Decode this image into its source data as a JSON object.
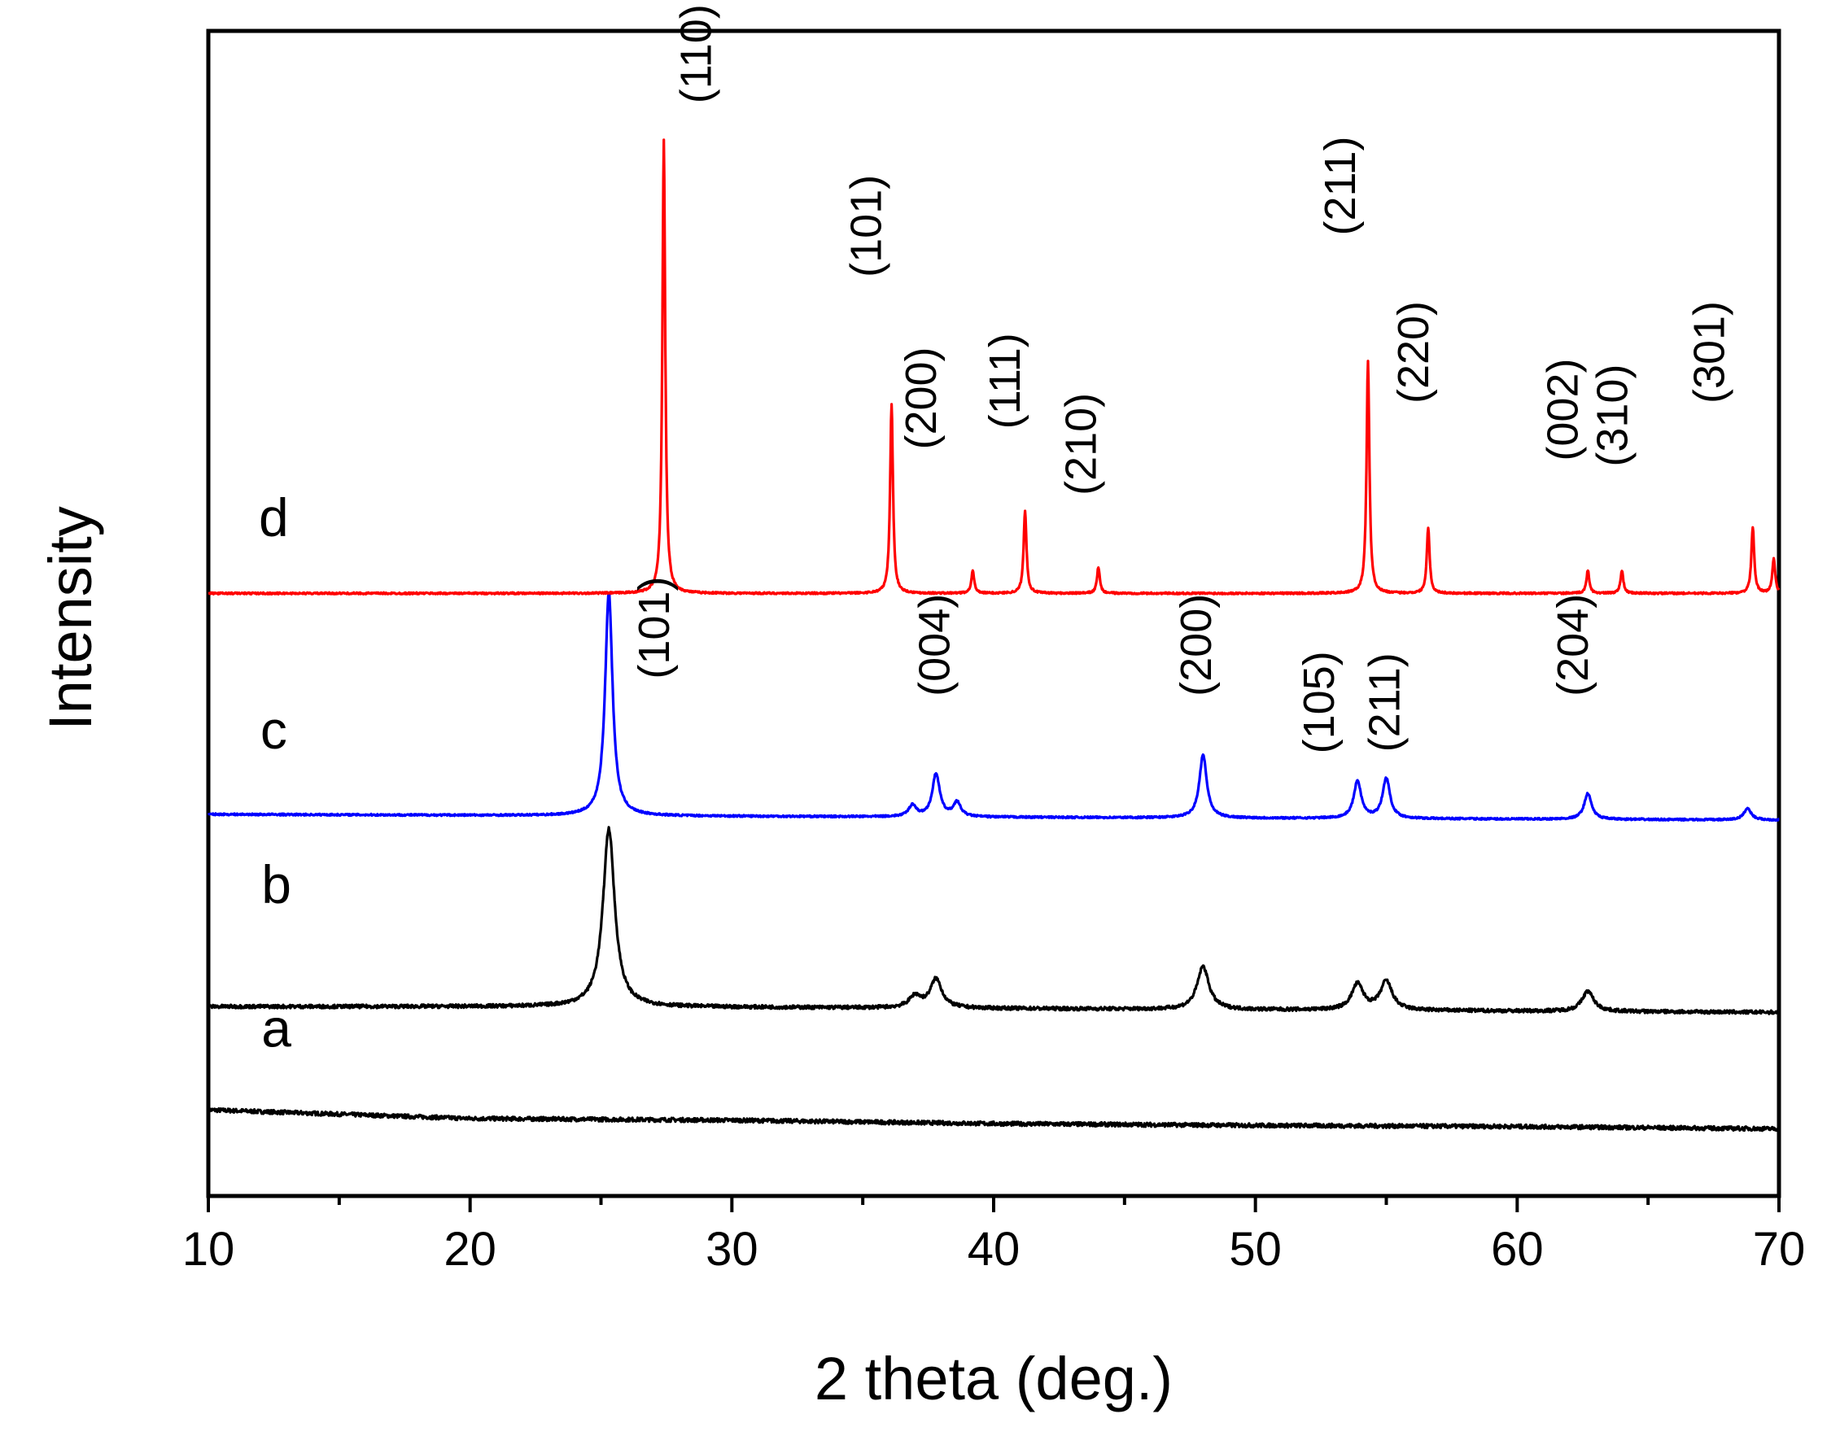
{
  "chart_data": {
    "type": "line",
    "title": "",
    "xlabel": "2 theta (deg.)",
    "ylabel": "Intensity",
    "xlim": [
      10,
      70
    ],
    "xticks": [
      10,
      20,
      30,
      40,
      50,
      60,
      70
    ],
    "grid": false,
    "legend": "none",
    "series": [
      {
        "name": "a",
        "color": "#000000",
        "points": [
          [
            10,
            0.03
          ],
          [
            20,
            0.015
          ],
          [
            30,
            0.012
          ],
          [
            40,
            0.006
          ],
          [
            50,
            0.003
          ],
          [
            60,
            0.001
          ],
          [
            70,
            -0.003
          ]
        ],
        "peaks": []
      },
      {
        "name": "b",
        "color": "#000000",
        "baseline": [
          [
            10,
            0.0
          ],
          [
            25,
            0.0
          ],
          [
            70,
            -0.01
          ]
        ],
        "peaks": [
          {
            "x": 25.3,
            "h": 0.31
          },
          {
            "x": 37.0,
            "h": 0.02
          },
          {
            "x": 37.8,
            "h": 0.05
          },
          {
            "x": 48.0,
            "h": 0.075
          },
          {
            "x": 53.9,
            "h": 0.045
          },
          {
            "x": 55.0,
            "h": 0.05
          },
          {
            "x": 62.7,
            "h": 0.035
          }
        ]
      },
      {
        "name": "c",
        "color": "#0000ff",
        "baseline": [
          [
            10,
            0.0
          ],
          [
            70,
            -0.01
          ]
        ],
        "peaks": [
          {
            "x": 25.3,
            "h": 0.39
          },
          {
            "x": 36.9,
            "h": 0.02
          },
          {
            "x": 37.8,
            "h": 0.075
          },
          {
            "x": 38.6,
            "h": 0.025
          },
          {
            "x": 48.0,
            "h": 0.11
          },
          {
            "x": 53.9,
            "h": 0.065
          },
          {
            "x": 55.0,
            "h": 0.07
          },
          {
            "x": 62.7,
            "h": 0.045
          },
          {
            "x": 68.8,
            "h": 0.02
          }
        ]
      },
      {
        "name": "d",
        "color": "#ff0000",
        "baseline": [
          [
            10,
            0.0
          ],
          [
            70,
            0.0
          ]
        ],
        "peaks": [
          {
            "x": 27.4,
            "h": 0.79
          },
          {
            "x": 36.1,
            "h": 0.33
          },
          {
            "x": 39.2,
            "h": 0.04
          },
          {
            "x": 41.2,
            "h": 0.145
          },
          {
            "x": 44.0,
            "h": 0.045
          },
          {
            "x": 54.3,
            "h": 0.405
          },
          {
            "x": 56.6,
            "h": 0.115
          },
          {
            "x": 62.7,
            "h": 0.04
          },
          {
            "x": 64.0,
            "h": 0.04
          },
          {
            "x": 69.0,
            "h": 0.115
          },
          {
            "x": 69.8,
            "h": 0.06
          }
        ]
      }
    ],
    "offsets": {
      "a": 0.0,
      "b": 0.21,
      "c": 0.545,
      "d": 0.93
    },
    "curve_labels": [
      {
        "text": "d",
        "x": 12.5,
        "y": 1.03
      },
      {
        "text": "c",
        "x": 12.5,
        "y": 0.66
      },
      {
        "text": "b",
        "x": 12.6,
        "y": 0.39
      },
      {
        "text": "a",
        "x": 12.6,
        "y": 0.14
      }
    ],
    "annotations": [
      {
        "text": "(110)",
        "x": 29.2,
        "y": 1.87
      },
      {
        "text": "(101)",
        "x": 35.7,
        "y": 1.57
      },
      {
        "text": "(200)",
        "x": 37.8,
        "y": 1.27
      },
      {
        "text": "(111)",
        "x": 41.0,
        "y": 1.3
      },
      {
        "text": "(210)",
        "x": 43.9,
        "y": 1.19
      },
      {
        "text": "(211)",
        "x": 53.8,
        "y": 1.64
      },
      {
        "text": "(220)",
        "x": 56.6,
        "y": 1.35
      },
      {
        "text": "(002)",
        "x": 62.3,
        "y": 1.25
      },
      {
        "text": "(310)",
        "x": 64.2,
        "y": 1.24
      },
      {
        "text": "(301)",
        "x": 67.9,
        "y": 1.35
      },
      {
        "text": "(101)",
        "x": 27.6,
        "y": 0.87
      },
      {
        "text": "(004)",
        "x": 38.3,
        "y": 0.84
      },
      {
        "text": "(200)",
        "x": 48.3,
        "y": 0.84
      },
      {
        "text": "(105)",
        "x": 53.0,
        "y": 0.74
      },
      {
        "text": "(211)",
        "x": 55.5,
        "y": 0.74
      },
      {
        "text": "(204)",
        "x": 62.7,
        "y": 0.84
      }
    ]
  }
}
